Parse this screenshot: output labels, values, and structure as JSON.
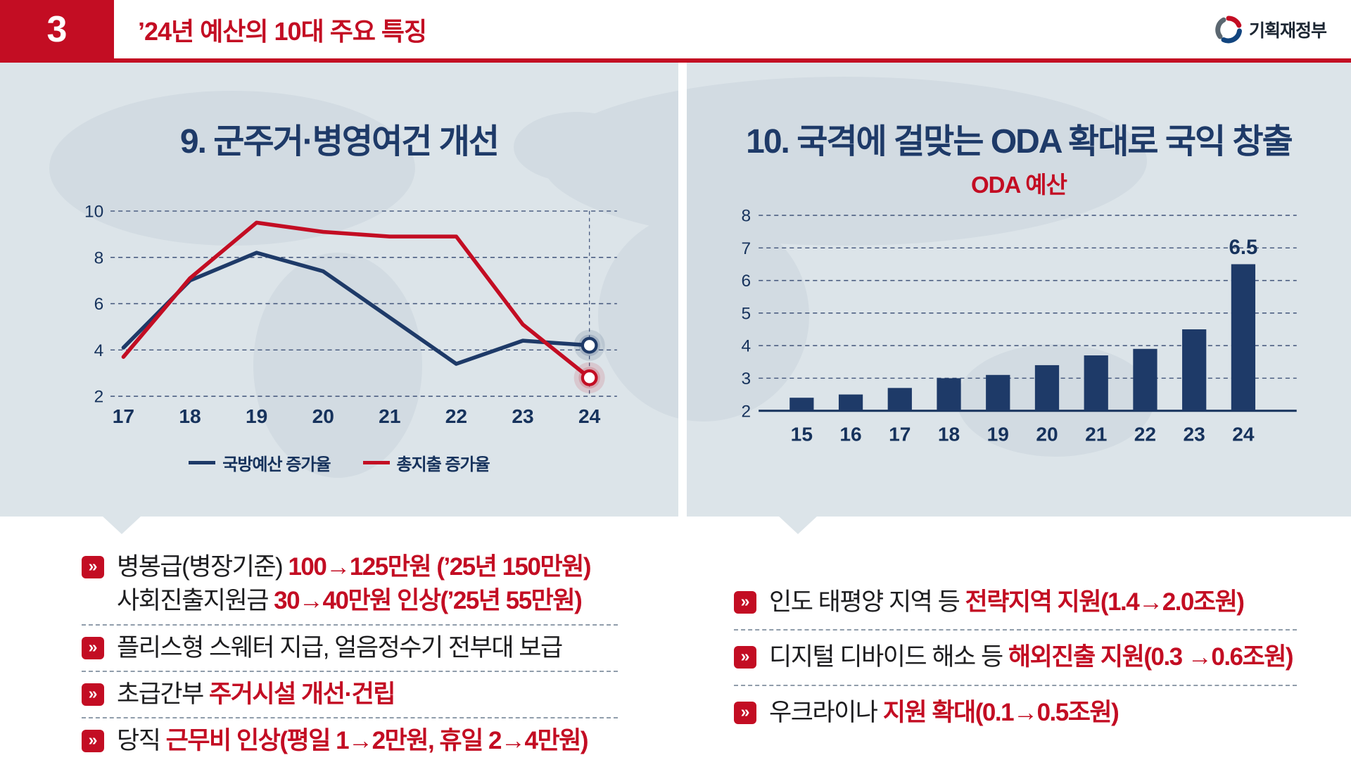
{
  "colors": {
    "accent_red": "#c30d23",
    "navy": "#1e3a68",
    "chart_bg": "#dce4e9"
  },
  "header": {
    "slide_number": "3",
    "title": "’24년 예산의 10대 주요 특징",
    "ministry": "기획재정부"
  },
  "left_panel": {
    "title": "9.  군주거·병영여건 개선",
    "bullet_glyph": "»",
    "legend": [
      {
        "label": "국방예산 증가율",
        "color": "#1e3a68"
      },
      {
        "label": "총지출 증가율",
        "color": "#c30d23"
      }
    ],
    "bullets": [
      {
        "lines": [
          [
            {
              "t": "병봉급(병장기준) "
            },
            {
              "t": "100→125만원 (’25년 150만원)",
              "em": true
            }
          ],
          [
            {
              "t": "사회진출지원금 "
            },
            {
              "t": "30→40만원 인상(’25년 55만원)",
              "em": true
            }
          ]
        ]
      },
      {
        "lines": [
          [
            {
              "t": "플리스형 스웨터 지급, 얼음정수기 전부대 보급"
            }
          ]
        ]
      },
      {
        "lines": [
          [
            {
              "t": "초급간부 "
            },
            {
              "t": "주거시설 개선·건립",
              "em": true
            }
          ]
        ]
      },
      {
        "lines": [
          [
            {
              "t": "당직 "
            },
            {
              "t": "근무비 인상(평일 1→2만원, 휴일 2→4만원)",
              "em": true
            }
          ]
        ]
      }
    ]
  },
  "right_panel": {
    "title": "10.  국격에 걸맞는 ODA 확대로 국익 창출",
    "subtitle": "ODA 예산",
    "bullets": [
      {
        "lines": [
          [
            {
              "t": "인도 태평양 지역 등 "
            },
            {
              "t": "전략지역 지원(1.4→2.0조원)",
              "em": true
            }
          ]
        ]
      },
      {
        "lines": [
          [
            {
              "t": "디지털 디바이드 해소 등 "
            },
            {
              "t": "해외진출 지원(0.3 →0.6조원)",
              "em": true
            }
          ]
        ]
      },
      {
        "lines": [
          [
            {
              "t": "우크라이나 "
            },
            {
              "t": "지원 확대(0.1→0.5조원)",
              "em": true
            }
          ]
        ]
      }
    ]
  },
  "chart_data": [
    {
      "type": "line",
      "title": "9. 군주거·병영여건 개선",
      "x": [
        "17",
        "18",
        "19",
        "20",
        "21",
        "22",
        "23",
        "24"
      ],
      "series": [
        {
          "name": "국방예산 증가율",
          "color": "#1e3a68",
          "values": [
            4.1,
            7.0,
            8.2,
            7.4,
            5.4,
            3.4,
            4.4,
            4.2
          ]
        },
        {
          "name": "총지출 증가율",
          "color": "#c30d23",
          "values": [
            3.7,
            7.1,
            9.5,
            9.1,
            8.9,
            8.9,
            5.1,
            2.8
          ]
        }
      ],
      "ylim": [
        2,
        10
      ],
      "yticks": [
        2,
        4,
        6,
        8,
        10
      ],
      "grid": "horizontal-dashed",
      "legend_position": "bottom",
      "end_marker": "open-circle-with-halo",
      "vertical_guide_at_last_x": true
    },
    {
      "type": "bar",
      "title": "ODA 예산",
      "categories": [
        "15",
        "16",
        "17",
        "18",
        "19",
        "20",
        "21",
        "22",
        "23",
        "24"
      ],
      "values": [
        2.4,
        2.5,
        2.7,
        3.0,
        3.1,
        3.4,
        3.7,
        3.9,
        4.5,
        6.5
      ],
      "bar_color": "#1e3a68",
      "ylim": [
        2,
        8
      ],
      "yticks": [
        2,
        3,
        4,
        5,
        6,
        7,
        8
      ],
      "grid": "horizontal-dashed",
      "data_label_last": "6.5"
    }
  ]
}
